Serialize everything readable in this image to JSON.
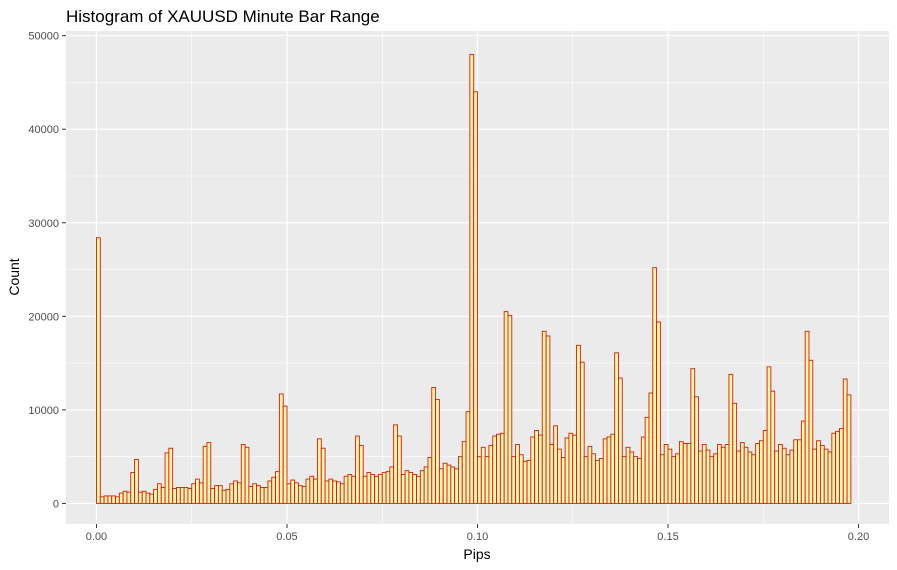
{
  "chart_data": {
    "type": "bar",
    "title": "Histogram of XAUUSD Minute Bar Range",
    "xlabel": "Pips",
    "ylabel": "Count",
    "xlim": [
      -0.008,
      0.208
    ],
    "ylim": [
      -2200,
      50500
    ],
    "bin_width": 0.001,
    "x_ticks": [
      0.0,
      0.05,
      0.1,
      0.15,
      0.2
    ],
    "x_tick_labels": [
      "0.00",
      "0.05",
      "0.10",
      "0.15",
      "0.20"
    ],
    "y_ticks": [
      0,
      10000,
      20000,
      30000,
      40000,
      50000
    ],
    "y_tick_labels": [
      "0",
      "10000",
      "20000",
      "30000",
      "40000",
      "50000"
    ],
    "grid": true,
    "colors": {
      "panel": "#ebebeb",
      "grid": "#ffffff",
      "bar_fill": "#fff2b3",
      "bar_stroke": "#cc2200"
    },
    "bin_start": [
      0.0,
      0.001,
      0.002,
      0.003,
      0.004,
      0.005,
      0.006,
      0.007,
      0.008,
      0.009,
      0.01,
      0.011,
      0.012,
      0.013,
      0.014,
      0.015,
      0.016,
      0.017,
      0.018,
      0.019,
      0.02,
      0.021,
      0.022,
      0.023,
      0.024,
      0.025,
      0.026,
      0.027,
      0.028,
      0.029,
      0.03,
      0.031,
      0.032,
      0.033,
      0.034,
      0.035,
      0.036,
      0.037,
      0.038,
      0.039,
      0.04,
      0.041,
      0.042,
      0.043,
      0.044,
      0.045,
      0.046,
      0.047,
      0.048,
      0.049,
      0.05,
      0.051,
      0.052,
      0.053,
      0.054,
      0.055,
      0.056,
      0.057,
      0.058,
      0.059,
      0.06,
      0.061,
      0.062,
      0.063,
      0.064,
      0.065,
      0.066,
      0.067,
      0.068,
      0.069,
      0.07,
      0.071,
      0.072,
      0.073,
      0.074,
      0.075,
      0.076,
      0.077,
      0.078,
      0.079,
      0.08,
      0.081,
      0.082,
      0.083,
      0.084,
      0.085,
      0.086,
      0.087,
      0.088,
      0.089,
      0.09,
      0.091,
      0.092,
      0.093,
      0.094,
      0.095,
      0.096,
      0.097,
      0.098,
      0.099,
      0.1,
      0.101,
      0.102,
      0.103,
      0.104,
      0.105,
      0.106,
      0.107,
      0.108,
      0.109,
      0.11,
      0.111,
      0.112,
      0.113,
      0.114,
      0.115,
      0.116,
      0.117,
      0.118,
      0.119,
      0.12,
      0.121,
      0.122,
      0.123,
      0.124,
      0.125,
      0.126,
      0.127,
      0.128,
      0.129,
      0.13,
      0.131,
      0.132,
      0.133,
      0.134,
      0.135,
      0.136,
      0.137,
      0.138,
      0.139,
      0.14,
      0.141,
      0.142,
      0.143,
      0.144,
      0.145,
      0.146,
      0.147,
      0.148,
      0.149,
      0.15,
      0.151,
      0.152,
      0.153,
      0.154,
      0.155,
      0.156,
      0.157,
      0.158,
      0.159,
      0.16,
      0.161,
      0.162,
      0.163,
      0.164,
      0.165,
      0.166,
      0.167,
      0.168,
      0.169,
      0.17,
      0.171,
      0.172,
      0.173,
      0.174,
      0.175,
      0.176,
      0.177,
      0.178,
      0.179,
      0.18,
      0.181,
      0.182,
      0.183,
      0.184,
      0.185,
      0.186,
      0.187,
      0.188,
      0.189,
      0.19,
      0.191,
      0.192,
      0.193,
      0.194,
      0.195,
      0.196,
      0.197,
      0.198,
      0.199
    ],
    "values": [
      28400,
      700,
      800,
      800,
      800,
      700,
      1100,
      1300,
      1200,
      3300,
      4700,
      1200,
      1300,
      1100,
      1000,
      1500,
      2100,
      1700,
      5400,
      5900,
      1600,
      1700,
      1700,
      1700,
      1600,
      2100,
      2600,
      2200,
      6100,
      6500,
      1600,
      1900,
      1900,
      1400,
      1500,
      2100,
      2400,
      2200,
      6300,
      6000,
      1800,
      2100,
      1900,
      1700,
      1700,
      2400,
      2800,
      3400,
      11700,
      10400,
      2100,
      2500,
      2200,
      1900,
      1800,
      2600,
      2900,
      2600,
      6900,
      5900,
      2400,
      2600,
      2400,
      2300,
      2100,
      2900,
      3100,
      2900,
      7200,
      6200,
      2900,
      3300,
      3100,
      2900,
      3100,
      3300,
      3400,
      3900,
      8400,
      7200,
      3100,
      3500,
      3300,
      3100,
      2900,
      3500,
      3900,
      4900,
      12400,
      11100,
      3700,
      4300,
      4100,
      3900,
      3700,
      5000,
      6600,
      9800,
      48000,
      44000,
      5000,
      6000,
      5000,
      6200,
      7200,
      7400,
      7500,
      20500,
      20100,
      5000,
      6300,
      5200,
      4500,
      4600,
      7100,
      7800,
      7300,
      18400,
      17900,
      6300,
      8300,
      5800,
      4900,
      7000,
      7500,
      7300,
      16900,
      15100,
      5000,
      6100,
      5300,
      4600,
      4800,
      6900,
      7100,
      7400,
      16100,
      13400,
      5000,
      6000,
      5500,
      5000,
      4800,
      7100,
      9200,
      11800,
      25200,
      19400,
      5200,
      6300,
      5800,
      5000,
      5300,
      6600,
      6400,
      6400,
      14400,
      11400,
      5600,
      6300,
      5700,
      5000,
      5300,
      6300,
      6000,
      6300,
      13800,
      10700,
      5600,
      6500,
      6000,
      5500,
      5200,
      6400,
      6700,
      7800,
      14600,
      12000,
      5600,
      6300,
      5900,
      5200,
      5700,
      6800,
      6800,
      8800,
      18400,
      15300,
      5800,
      6700,
      6200,
      5800,
      5500,
      7500,
      7700,
      8000,
      13300,
      11600
    ]
  }
}
